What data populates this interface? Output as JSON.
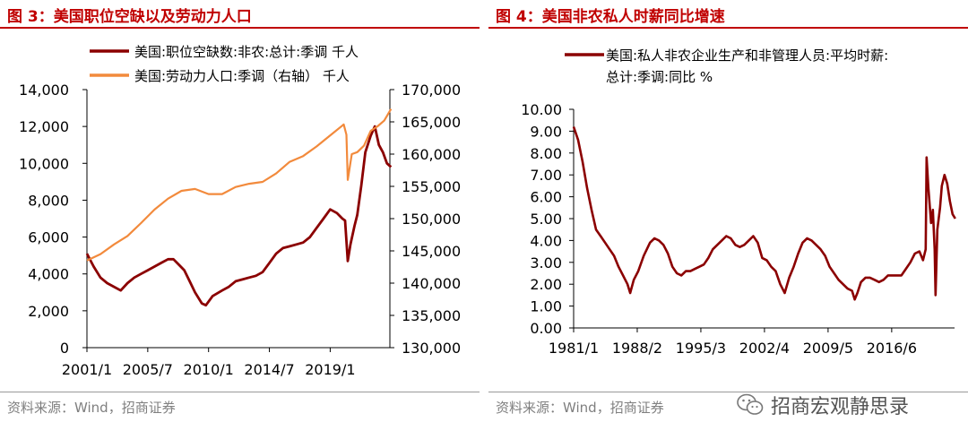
{
  "left_panel": {
    "title": "图 3：美国职位空缺以及劳动力人口",
    "source": "资料来源：Wind，招商证券"
  },
  "right_panel": {
    "title": "图 4：美国非农私人时薪同比增速",
    "source": "资料来源：Wind，招商证券"
  },
  "brand": {
    "name": "招商宏观静思录",
    "icon": "wechat-icon"
  },
  "colors": {
    "title_red": "#c00000",
    "dark_red": "#8b0000",
    "orange": "#f28a3c",
    "gray": "#7f7f7f"
  },
  "chart_data": [
    {
      "type": "line",
      "title": "",
      "x_ticks": [
        "2001/1",
        "2005/7",
        "2010/1",
        "2014/7",
        "2019/1"
      ],
      "x_range": [
        "2001/1",
        "2023/6"
      ],
      "y_left": {
        "ylim": [
          0,
          14000
        ],
        "ticks": [
          "0",
          "2,000",
          "4,000",
          "6,000",
          "8,000",
          "10,000",
          "12,000",
          "14,000"
        ]
      },
      "y_right": {
        "ylim": [
          130000,
          170000
        ],
        "ticks": [
          "130,000",
          "135,000",
          "140,000",
          "145,000",
          "150,000",
          "155,000",
          "160,000",
          "165,000",
          "170,000"
        ]
      },
      "grid": false,
      "legend_position": "top",
      "series": [
        {
          "name": "美国:职位空缺数:非农:总计:季调 千人",
          "axis": "left",
          "color": "#8b0000",
          "points": [
            [
              2001.0,
              5100
            ],
            [
              2001.5,
              4400
            ],
            [
              2002.0,
              3800
            ],
            [
              2002.5,
              3500
            ],
            [
              2003.0,
              3300
            ],
            [
              2003.5,
              3100
            ],
            [
              2004.0,
              3500
            ],
            [
              2004.5,
              3800
            ],
            [
              2005.0,
              4000
            ],
            [
              2005.5,
              4200
            ],
            [
              2006.0,
              4400
            ],
            [
              2006.5,
              4600
            ],
            [
              2007.0,
              4800
            ],
            [
              2007.4,
              4800
            ],
            [
              2007.8,
              4500
            ],
            [
              2008.2,
              4200
            ],
            [
              2008.6,
              3600
            ],
            [
              2009.0,
              3000
            ],
            [
              2009.5,
              2400
            ],
            [
              2009.8,
              2300
            ],
            [
              2010.3,
              2800
            ],
            [
              2011.0,
              3100
            ],
            [
              2011.5,
              3300
            ],
            [
              2012.0,
              3600
            ],
            [
              2012.5,
              3700
            ],
            [
              2013.0,
              3800
            ],
            [
              2013.5,
              3900
            ],
            [
              2014.0,
              4100
            ],
            [
              2014.5,
              4600
            ],
            [
              2015.0,
              5100
            ],
            [
              2015.5,
              5400
            ],
            [
              2016.0,
              5500
            ],
            [
              2016.5,
              5600
            ],
            [
              2017.0,
              5700
            ],
            [
              2017.5,
              6000
            ],
            [
              2018.0,
              6500
            ],
            [
              2018.5,
              7000
            ],
            [
              2019.0,
              7500
            ],
            [
              2019.5,
              7300
            ],
            [
              2019.9,
              7000
            ],
            [
              2020.1,
              6900
            ],
            [
              2020.3,
              4700
            ],
            [
              2020.5,
              5600
            ],
            [
              2020.8,
              6600
            ],
            [
              2021.0,
              7200
            ],
            [
              2021.3,
              8800
            ],
            [
              2021.6,
              10600
            ],
            [
              2022.0,
              11500
            ],
            [
              2022.3,
              12000
            ],
            [
              2022.6,
              11000
            ],
            [
              2022.9,
              10600
            ],
            [
              2023.2,
              10000
            ],
            [
              2023.5,
              9800
            ]
          ]
        },
        {
          "name": "美国:劳动力人口:季调（右轴） 千人",
          "axis": "right",
          "color": "#f28a3c",
          "points": [
            [
              2001.0,
              143500
            ],
            [
              2002.0,
              144500
            ],
            [
              2003.0,
              146000
            ],
            [
              2004.0,
              147300
            ],
            [
              2005.0,
              149300
            ],
            [
              2006.0,
              151400
            ],
            [
              2007.0,
              153100
            ],
            [
              2008.0,
              154300
            ],
            [
              2009.0,
              154600
            ],
            [
              2010.0,
              153800
            ],
            [
              2011.0,
              153800
            ],
            [
              2012.0,
              154900
            ],
            [
              2013.0,
              155400
            ],
            [
              2014.0,
              155700
            ],
            [
              2015.0,
              157000
            ],
            [
              2016.0,
              158800
            ],
            [
              2017.0,
              159700
            ],
            [
              2018.0,
              161200
            ],
            [
              2019.0,
              162900
            ],
            [
              2020.0,
              164600
            ],
            [
              2020.2,
              163000
            ],
            [
              2020.3,
              156000
            ],
            [
              2020.6,
              160000
            ],
            [
              2021.0,
              160300
            ],
            [
              2021.5,
              161300
            ],
            [
              2022.0,
              163600
            ],
            [
              2022.5,
              164300
            ],
            [
              2023.0,
              165200
            ],
            [
              2023.5,
              167000
            ]
          ]
        }
      ]
    },
    {
      "type": "line",
      "title": "",
      "x_ticks": [
        "1981/1",
        "1988/2",
        "1995/3",
        "2002/4",
        "2009/5",
        "2016/6"
      ],
      "x_range": [
        "1981/1",
        "2023/6"
      ],
      "ylim": [
        0,
        10
      ],
      "y_ticks": [
        "0.00",
        "1.00",
        "2.00",
        "3.00",
        "4.00",
        "5.00",
        "6.00",
        "7.00",
        "8.00",
        "9.00",
        "10.00"
      ],
      "ylabel": "",
      "grid": false,
      "legend_position": "top",
      "series": [
        {
          "name": "美国:私人非农企业生产和非管理人员:平均时薪:总计:季调:同比 %",
          "color": "#8b0000",
          "points": [
            [
              1981.0,
              9.2
            ],
            [
              1981.5,
              8.6
            ],
            [
              1982.0,
              7.6
            ],
            [
              1982.5,
              6.4
            ],
            [
              1983.0,
              5.4
            ],
            [
              1983.5,
              4.5
            ],
            [
              1984.0,
              4.2
            ],
            [
              1984.5,
              3.9
            ],
            [
              1985.0,
              3.6
            ],
            [
              1985.5,
              3.3
            ],
            [
              1986.0,
              2.8
            ],
            [
              1986.5,
              2.4
            ],
            [
              1987.0,
              2.0
            ],
            [
              1987.3,
              1.6
            ],
            [
              1987.7,
              2.2
            ],
            [
              1988.2,
              2.6
            ],
            [
              1988.8,
              3.3
            ],
            [
              1989.5,
              3.9
            ],
            [
              1990.0,
              4.1
            ],
            [
              1990.5,
              4.0
            ],
            [
              1991.0,
              3.8
            ],
            [
              1991.5,
              3.4
            ],
            [
              1992.0,
              2.8
            ],
            [
              1992.5,
              2.5
            ],
            [
              1993.0,
              2.4
            ],
            [
              1993.5,
              2.6
            ],
            [
              1994.0,
              2.6
            ],
            [
              1994.5,
              2.7
            ],
            [
              1995.0,
              2.8
            ],
            [
              1995.5,
              2.9
            ],
            [
              1996.0,
              3.2
            ],
            [
              1996.5,
              3.6
            ],
            [
              1997.0,
              3.8
            ],
            [
              1997.5,
              4.0
            ],
            [
              1998.0,
              4.2
            ],
            [
              1998.5,
              4.1
            ],
            [
              1999.0,
              3.8
            ],
            [
              1999.5,
              3.7
            ],
            [
              2000.0,
              3.8
            ],
            [
              2000.5,
              4.0
            ],
            [
              2001.0,
              4.2
            ],
            [
              2001.5,
              3.9
            ],
            [
              2002.0,
              3.2
            ],
            [
              2002.5,
              3.1
            ],
            [
              2003.0,
              2.8
            ],
            [
              2003.5,
              2.6
            ],
            [
              2004.0,
              2.0
            ],
            [
              2004.5,
              1.6
            ],
            [
              2005.0,
              2.3
            ],
            [
              2005.5,
              2.8
            ],
            [
              2006.0,
              3.4
            ],
            [
              2006.5,
              3.9
            ],
            [
              2007.0,
              4.1
            ],
            [
              2007.5,
              4.0
            ],
            [
              2008.0,
              3.8
            ],
            [
              2008.5,
              3.6
            ],
            [
              2009.0,
              3.3
            ],
            [
              2009.5,
              2.8
            ],
            [
              2010.0,
              2.5
            ],
            [
              2010.5,
              2.2
            ],
            [
              2011.0,
              2.0
            ],
            [
              2011.5,
              1.8
            ],
            [
              2012.0,
              1.7
            ],
            [
              2012.3,
              1.3
            ],
            [
              2012.6,
              1.6
            ],
            [
              2013.0,
              2.1
            ],
            [
              2013.5,
              2.3
            ],
            [
              2014.0,
              2.3
            ],
            [
              2014.5,
              2.2
            ],
            [
              2015.0,
              2.1
            ],
            [
              2015.5,
              2.2
            ],
            [
              2016.0,
              2.4
            ],
            [
              2016.5,
              2.4
            ],
            [
              2017.0,
              2.4
            ],
            [
              2017.5,
              2.4
            ],
            [
              2018.0,
              2.7
            ],
            [
              2018.5,
              3.0
            ],
            [
              2019.0,
              3.4
            ],
            [
              2019.5,
              3.5
            ],
            [
              2019.9,
              3.1
            ],
            [
              2020.2,
              3.6
            ],
            [
              2020.3,
              7.8
            ],
            [
              2020.5,
              6.4
            ],
            [
              2020.8,
              4.8
            ],
            [
              2021.0,
              5.4
            ],
            [
              2021.2,
              3.6
            ],
            [
              2021.3,
              1.5
            ],
            [
              2021.5,
              4.5
            ],
            [
              2021.8,
              5.5
            ],
            [
              2022.0,
              6.5
            ],
            [
              2022.3,
              7.0
            ],
            [
              2022.6,
              6.6
            ],
            [
              2022.9,
              5.8
            ],
            [
              2023.2,
              5.2
            ],
            [
              2023.5,
              5.0
            ]
          ]
        }
      ]
    }
  ]
}
